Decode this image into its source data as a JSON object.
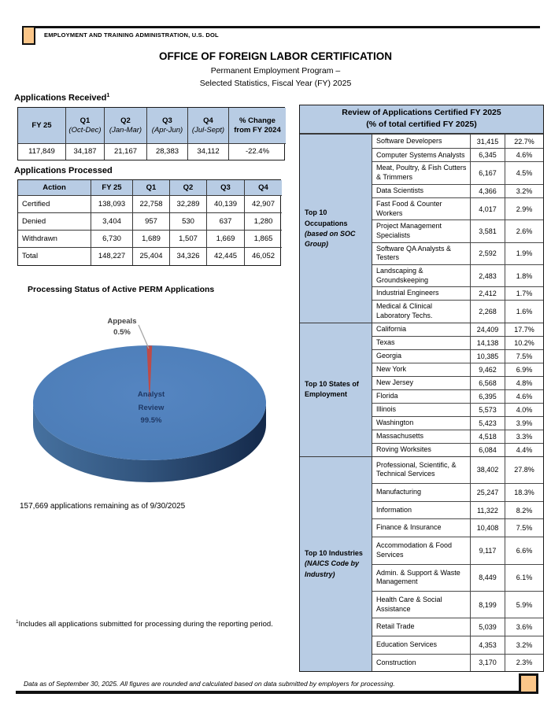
{
  "header": {
    "banner": "EMPLOYMENT AND TRAINING ADMINISTRATION, U.S. DOL",
    "title": "OFFICE OF FOREIGN LABOR CERTIFICATION",
    "subtitle1": "Permanent Employment Program –",
    "subtitle2": "Selected Statistics, Fiscal Year (FY) 2025"
  },
  "applications_received": {
    "heading": "Applications Received",
    "heading_sup": "1",
    "columns": [
      {
        "label": "FY 25",
        "sub": ""
      },
      {
        "label": "Q1",
        "sub": "(Oct-Dec)"
      },
      {
        "label": "Q2",
        "sub": "(Jan-Mar)"
      },
      {
        "label": "Q3",
        "sub": "(Apr-Jun)"
      },
      {
        "label": "Q4",
        "sub": "(Jul-Sept)"
      },
      {
        "label": "% Change from FY 2024",
        "sub": ""
      }
    ],
    "values": [
      "117,849",
      "34,187",
      "21,167",
      "28,383",
      "34,112",
      "-22.4%"
    ]
  },
  "applications_processed": {
    "heading": "Applications Processed",
    "columns": [
      "Action",
      "FY 25",
      "Q1",
      "Q2",
      "Q3",
      "Q4"
    ],
    "rows": [
      [
        "Certified",
        "138,093",
        "22,758",
        "32,289",
        "40,139",
        "42,907"
      ],
      [
        "Denied",
        "3,404",
        "957",
        "530",
        "637",
        "1,280"
      ],
      [
        "Withdrawn",
        "6,730",
        "1,689",
        "1,507",
        "1,669",
        "1,865"
      ],
      [
        "Total",
        "148,227",
        "25,404",
        "34,326",
        "42,445",
        "46,052"
      ]
    ]
  },
  "chart_data": {
    "type": "pie",
    "style": "3d",
    "title": "Processing Status of Active PERM Applications",
    "labels": [
      "Analyst Review",
      "Appeals"
    ],
    "values": [
      99.5,
      0.5
    ],
    "unit": "%",
    "colors": [
      "#4E80BC",
      "#BE4B48"
    ],
    "legend_position": "none",
    "callouts": {
      "appeals": [
        "Appeals",
        "0.5%"
      ],
      "analyst": [
        "Analyst",
        "Review",
        "99.5%"
      ]
    }
  },
  "remaining_note": "157,669 applications remaining as of 9/30/2025",
  "footnote": {
    "sup": "1",
    "text": "Includes all applications submitted for processing during the reporting period."
  },
  "review_panel": {
    "title_line1": "Review of Applications Certified FY 2025",
    "title_line2": "(% of total certified FY 2025)",
    "sections": [
      {
        "label": "Top 10 Occupations",
        "note": "(based on SOC Group)",
        "rows": [
          [
            "Software Developers",
            "31,415",
            "22.7%"
          ],
          [
            "Computer Systems Analysts",
            "6,345",
            "4.6%"
          ],
          [
            "Meat, Poultry, & Fish Cutters & Trimmers",
            "6,167",
            "4.5%"
          ],
          [
            "Data Scientists",
            "4,366",
            "3.2%"
          ],
          [
            "Fast Food & Counter Workers",
            "4,017",
            "2.9%"
          ],
          [
            "Project Management Specialists",
            "3,581",
            "2.6%"
          ],
          [
            "Software QA Analysts & Testers",
            "2,592",
            "1.9%"
          ],
          [
            "Landscaping & Groundskeeping",
            "2,483",
            "1.8%"
          ],
          [
            "Industrial Engineers",
            "2,412",
            "1.7%"
          ],
          [
            "Medical & Clinical Laboratory Techs.",
            "2,268",
            "1.6%"
          ]
        ]
      },
      {
        "label": "Top 10 States of Employment",
        "note": "",
        "rows": [
          [
            "California",
            "24,409",
            "17.7%"
          ],
          [
            "Texas",
            "14,138",
            "10.2%"
          ],
          [
            "Georgia",
            "10,385",
            "7.5%"
          ],
          [
            "New York",
            "9,462",
            "6.9%"
          ],
          [
            "New Jersey",
            "6,568",
            "4.8%"
          ],
          [
            "Florida",
            "6,395",
            "4.6%"
          ],
          [
            "Illinois",
            "5,573",
            "4.0%"
          ],
          [
            "Washington",
            "5,423",
            "3.9%"
          ],
          [
            "Massachusetts",
            "4,518",
            "3.3%"
          ],
          [
            "Roving Worksites",
            "6,084",
            "4.4%"
          ]
        ]
      },
      {
        "label": "Top 10 Industries",
        "note": "(NAICS Code by Industry)",
        "rows": [
          [
            "Professional, Scientific, & Technical Services",
            "38,402",
            "27.8%"
          ],
          [
            "Manufacturing",
            "25,247",
            "18.3%"
          ],
          [
            "Information",
            "11,322",
            "8.2%"
          ],
          [
            "Finance & Insurance",
            "10,408",
            "7.5%"
          ],
          [
            "Accommodation & Food Services",
            "9,117",
            "6.6%"
          ],
          [
            "Admin. & Support & Waste Management",
            "8,449",
            "6.1%"
          ],
          [
            "Health Care & Social Assistance",
            "8,199",
            "5.9%"
          ],
          [
            "Retail Trade",
            "5,039",
            "3.6%"
          ],
          [
            "Education Services",
            "4,353",
            "3.2%"
          ],
          [
            "Construction",
            "3,170",
            "2.3%"
          ]
        ]
      }
    ]
  },
  "footer": {
    "text": "Data as of September 30, 2025.  All figures are rounded and calculated based on data submitted by employers for processing."
  },
  "colors": {
    "table_header_blue": "#B8CCE4",
    "pie_top_blue": "#4E80BC",
    "pie_side_dark": "#17304F",
    "pie_red": "#BE4B48",
    "tab_orange": "#FBC689"
  }
}
